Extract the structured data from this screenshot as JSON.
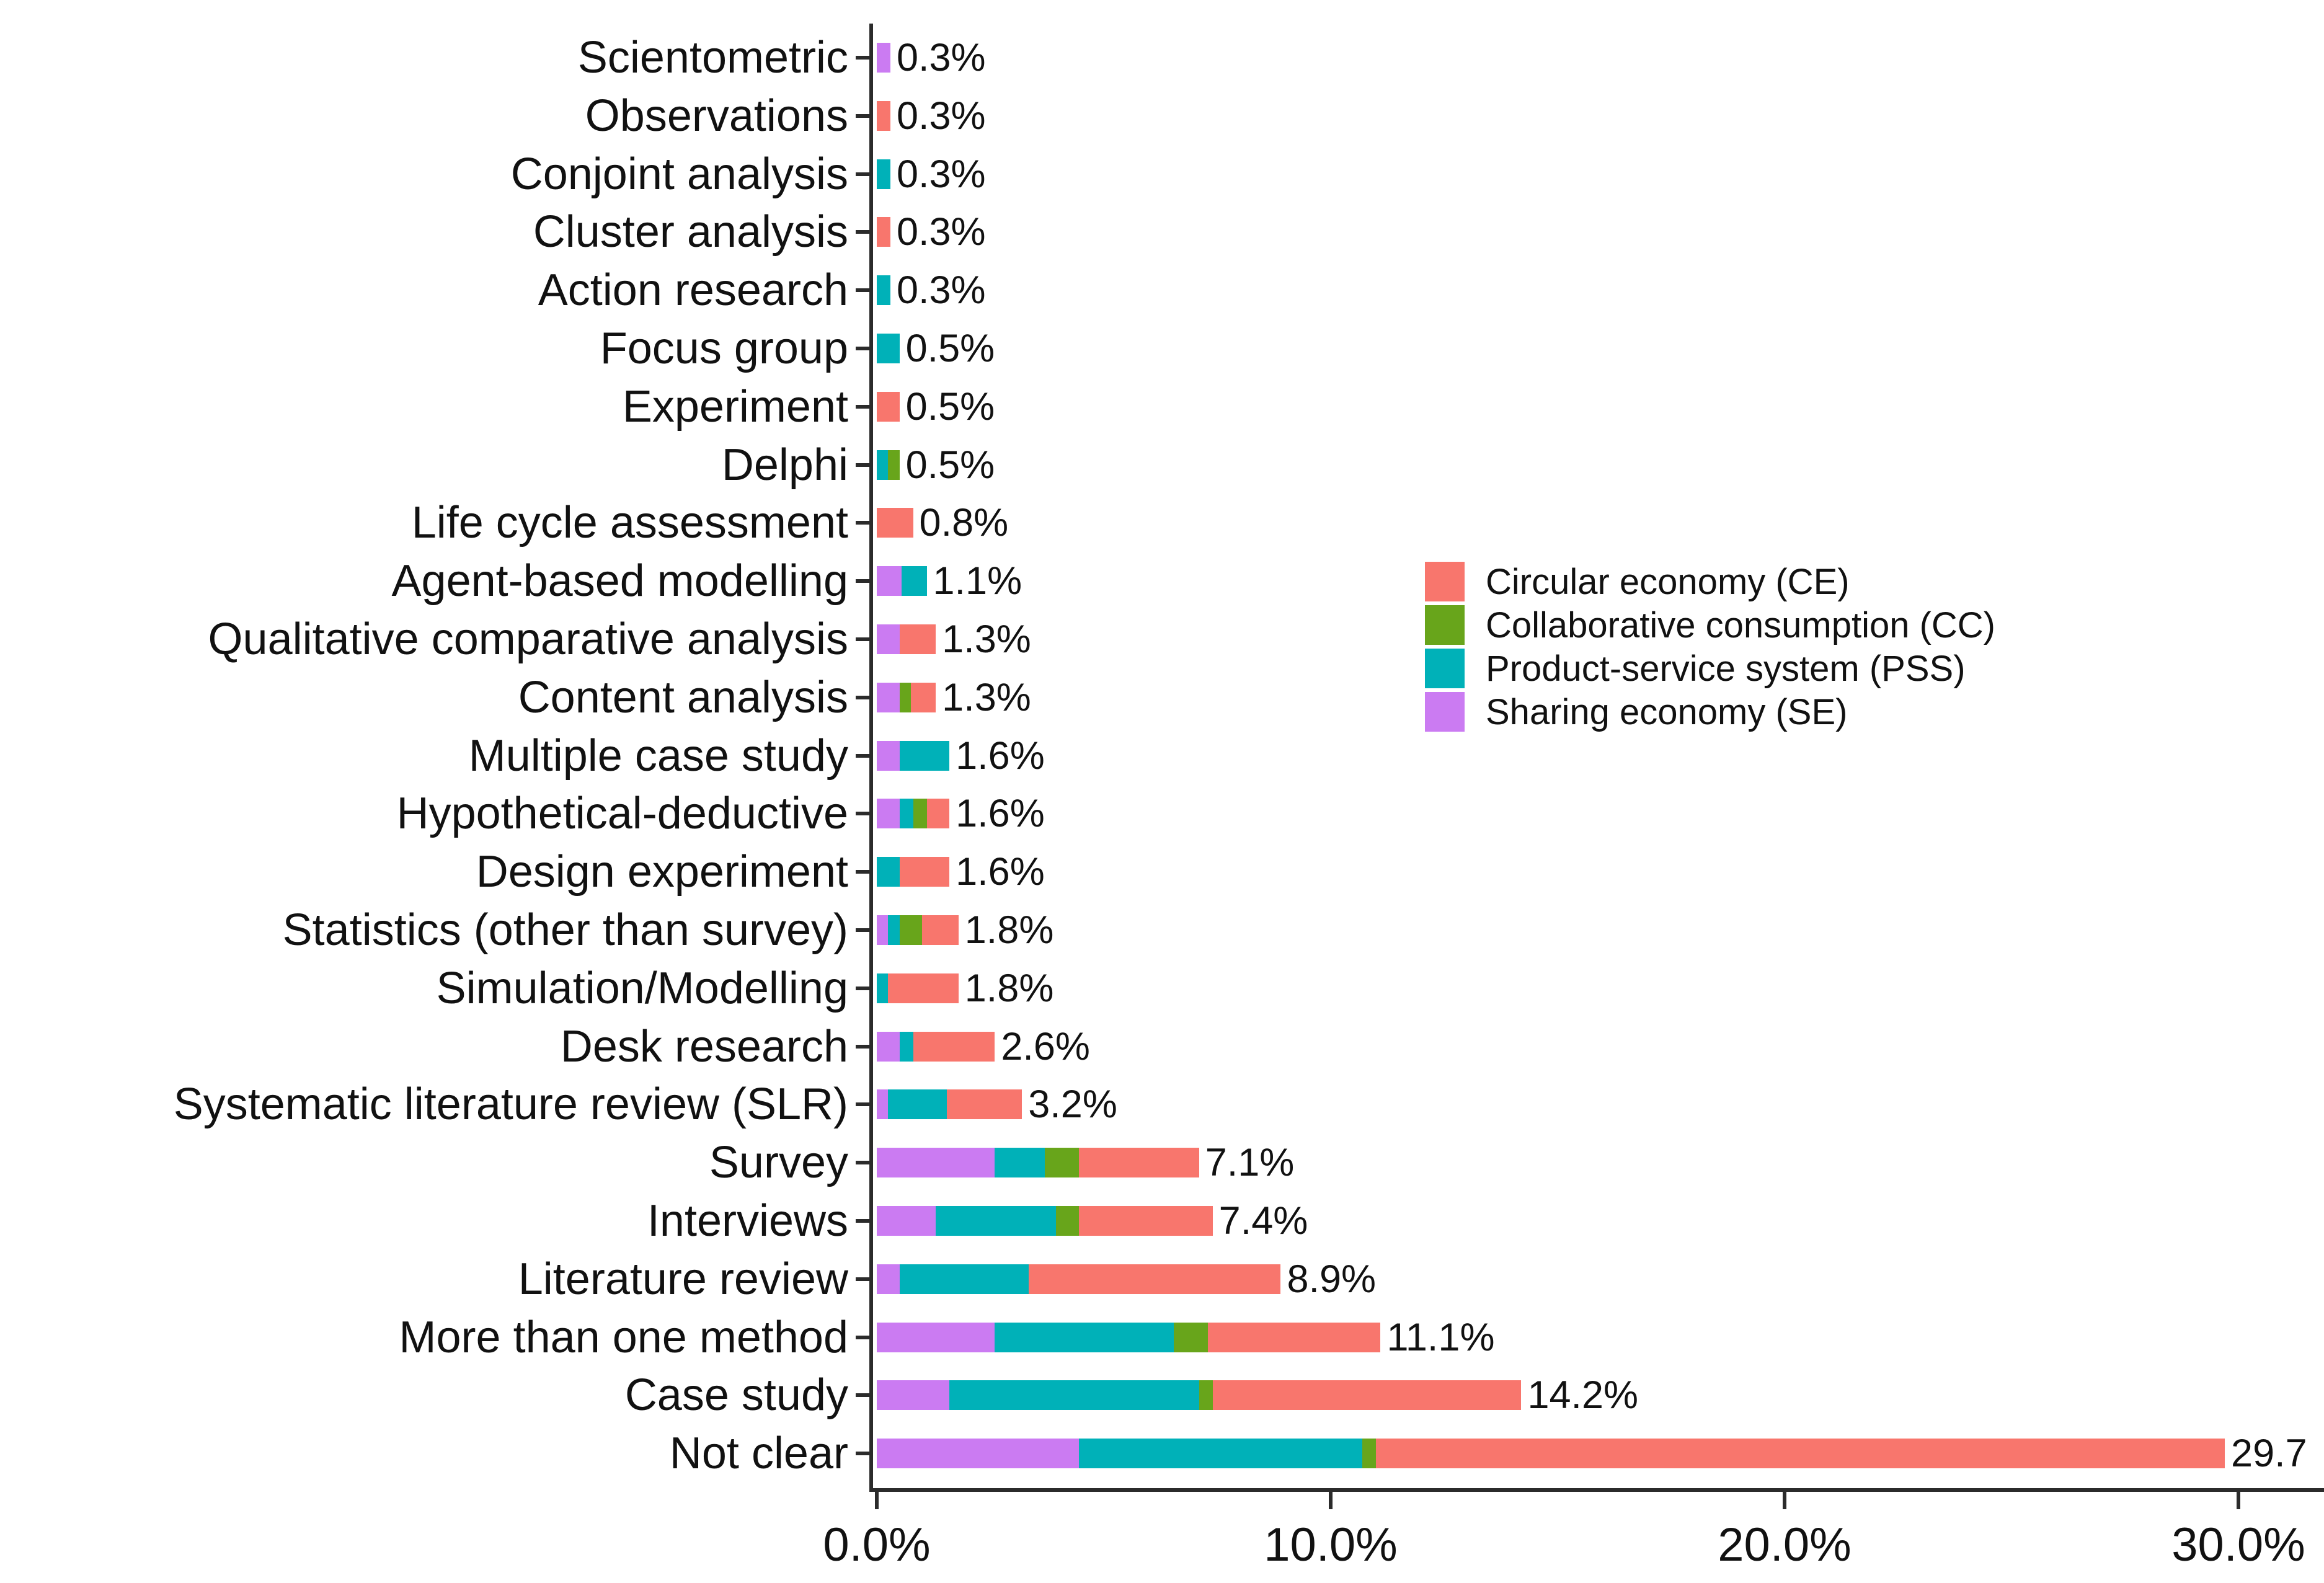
{
  "figure": {
    "background": "#ffffff",
    "text_color": "#111111",
    "axis_color": "#2b2b2b"
  },
  "chart_data": {
    "type": "bar",
    "orientation": "horizontal",
    "stacked": true,
    "title": "",
    "xlabel": "",
    "ylabel": "",
    "value_unit": "percent",
    "grid": false,
    "x_axis": {
      "range": [
        0,
        31.9
      ],
      "ticks": [
        {
          "value": 0,
          "label": "0.0%"
        },
        {
          "value": 10,
          "label": "10.0%"
        },
        {
          "value": 20,
          "label": "20.0%"
        },
        {
          "value": 30,
          "label": "30.0%"
        }
      ]
    },
    "series": [
      {
        "id": "SE",
        "name": "Sharing economy (SE)",
        "color": "#CB7BF2"
      },
      {
        "id": "PSS",
        "name": "Product-service system (PSS)",
        "color": "#00B1B8"
      },
      {
        "id": "CC",
        "name": "Collaborative consumption (CC)",
        "color": "#68A51B"
      },
      {
        "id": "CE",
        "name": "Circular economy (CE)",
        "color": "#F8766D"
      }
    ],
    "legend": {
      "position": "inside-upper-right",
      "order": [
        "CE",
        "CC",
        "PSS",
        "SE"
      ]
    },
    "stack_order": [
      "SE",
      "PSS",
      "CC",
      "CE"
    ],
    "bars": [
      {
        "category": "Scientometric",
        "total_label": "0.3%",
        "segments": {
          "SE": 0.3
        }
      },
      {
        "category": "Observations",
        "total_label": "0.3%",
        "segments": {
          "CE": 0.3
        }
      },
      {
        "category": "Conjoint analysis",
        "total_label": "0.3%",
        "segments": {
          "PSS": 0.3
        }
      },
      {
        "category": "Cluster analysis",
        "total_label": "0.3%",
        "segments": {
          "CE": 0.3
        }
      },
      {
        "category": "Action research",
        "total_label": "0.3%",
        "segments": {
          "PSS": 0.3
        }
      },
      {
        "category": "Focus group",
        "total_label": "0.5%",
        "segments": {
          "PSS": 0.5
        }
      },
      {
        "category": "Experiment",
        "total_label": "0.5%",
        "segments": {
          "CE": 0.5
        }
      },
      {
        "category": "Delphi",
        "total_label": "0.5%",
        "segments": {
          "PSS": 0.25,
          "CC": 0.25
        }
      },
      {
        "category": "Life cycle assessment",
        "total_label": "0.8%",
        "segments": {
          "CE": 0.8
        }
      },
      {
        "category": "Agent-based modelling",
        "total_label": "1.1%",
        "segments": {
          "SE": 0.55,
          "PSS": 0.55
        }
      },
      {
        "category": "Qualitative comparative analysis",
        "total_label": "1.3%",
        "segments": {
          "SE": 0.5,
          "CE": 0.8
        }
      },
      {
        "category": "Content analysis",
        "total_label": "1.3%",
        "segments": {
          "SE": 0.5,
          "CC": 0.25,
          "CE": 0.55
        }
      },
      {
        "category": "Multiple case study",
        "total_label": "1.6%",
        "segments": {
          "SE": 0.5,
          "PSS": 1.1
        }
      },
      {
        "category": "Hypothetical-deductive",
        "total_label": "1.6%",
        "segments": {
          "SE": 0.5,
          "PSS": 0.3,
          "CC": 0.3,
          "CE": 0.5
        }
      },
      {
        "category": "Design experiment",
        "total_label": "1.6%",
        "segments": {
          "PSS": 0.5,
          "CE": 1.1
        }
      },
      {
        "category": "Statistics (other than survey)",
        "total_label": "1.8%",
        "segments": {
          "SE": 0.25,
          "PSS": 0.25,
          "CC": 0.5,
          "CE": 0.8
        }
      },
      {
        "category": "Simulation/Modelling",
        "total_label": "1.8%",
        "segments": {
          "PSS": 0.25,
          "CE": 1.55
        }
      },
      {
        "category": "Desk research",
        "total_label": "2.6%",
        "segments": {
          "SE": 0.5,
          "PSS": 0.3,
          "CE": 1.8
        }
      },
      {
        "category": "Systematic literature review (SLR)",
        "total_label": "3.2%",
        "segments": {
          "SE": 0.25,
          "PSS": 1.3,
          "CE": 1.65
        }
      },
      {
        "category": "Survey",
        "total_label": "7.1%",
        "segments": {
          "SE": 2.6,
          "PSS": 1.1,
          "CC": 0.75,
          "CE": 2.65
        }
      },
      {
        "category": "Interviews",
        "total_label": "7.4%",
        "segments": {
          "SE": 1.3,
          "PSS": 2.65,
          "CC": 0.5,
          "CE": 2.95
        }
      },
      {
        "category": "Literature review",
        "total_label": "8.9%",
        "segments": {
          "SE": 0.5,
          "PSS": 2.85,
          "CE": 5.55
        }
      },
      {
        "category": "More than one method",
        "total_label": "11.1%",
        "segments": {
          "SE": 2.6,
          "PSS": 3.95,
          "CC": 0.75,
          "CE": 3.8
        }
      },
      {
        "category": "Case study",
        "total_label": "14.2%",
        "segments": {
          "SE": 1.6,
          "PSS": 5.5,
          "CC": 0.3,
          "CE": 6.8
        }
      },
      {
        "category": "Not clear",
        "total_label": "29.7",
        "segments": {
          "SE": 4.45,
          "PSS": 6.25,
          "CC": 0.3,
          "CE": 18.7
        }
      }
    ]
  }
}
